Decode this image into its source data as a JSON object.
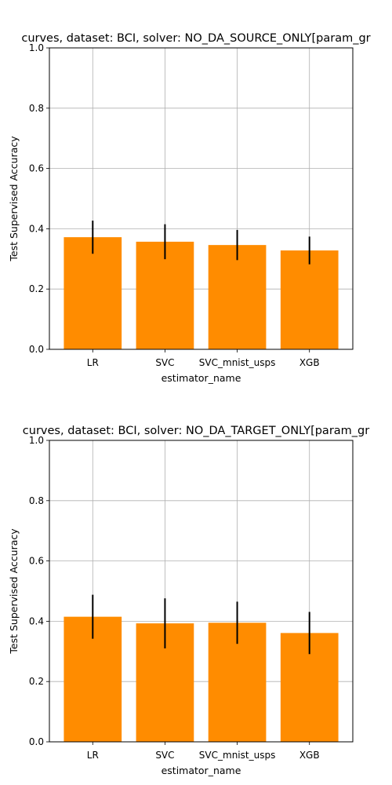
{
  "chart_data": [
    {
      "type": "bar",
      "title": "curves, dataset: BCI, solver: NO_DA_SOURCE_ONLY[param_gr",
      "xlabel": "estimator_name",
      "ylabel": "Test Supervised Accuracy",
      "categories": [
        "LR",
        "SVC",
        "SVC_mnist_usps",
        "XGB"
      ],
      "values": [
        0.372,
        0.357,
        0.346,
        0.328
      ],
      "error": [
        0.055,
        0.058,
        0.05,
        0.046
      ],
      "ylim": [
        0,
        1
      ],
      "yticks": [
        "0.0",
        "0.2",
        "0.4",
        "0.6",
        "0.8",
        "1.0"
      ],
      "grid": true,
      "bar_color": "#ff8c00",
      "error_color": "#000000"
    },
    {
      "type": "bar",
      "title": "curves, dataset: BCI, solver: NO_DA_TARGET_ONLY[param_gr",
      "xlabel": "estimator_name",
      "ylabel": "Test Supervised Accuracy",
      "categories": [
        "LR",
        "SVC",
        "SVC_mnist_usps",
        "XGB"
      ],
      "values": [
        0.415,
        0.393,
        0.395,
        0.361
      ],
      "error": [
        0.073,
        0.083,
        0.07,
        0.07
      ],
      "ylim": [
        0,
        1
      ],
      "yticks": [
        "0.0",
        "0.2",
        "0.4",
        "0.6",
        "0.8",
        "1.0"
      ],
      "grid": true,
      "bar_color": "#ff8c00",
      "error_color": "#000000"
    }
  ]
}
